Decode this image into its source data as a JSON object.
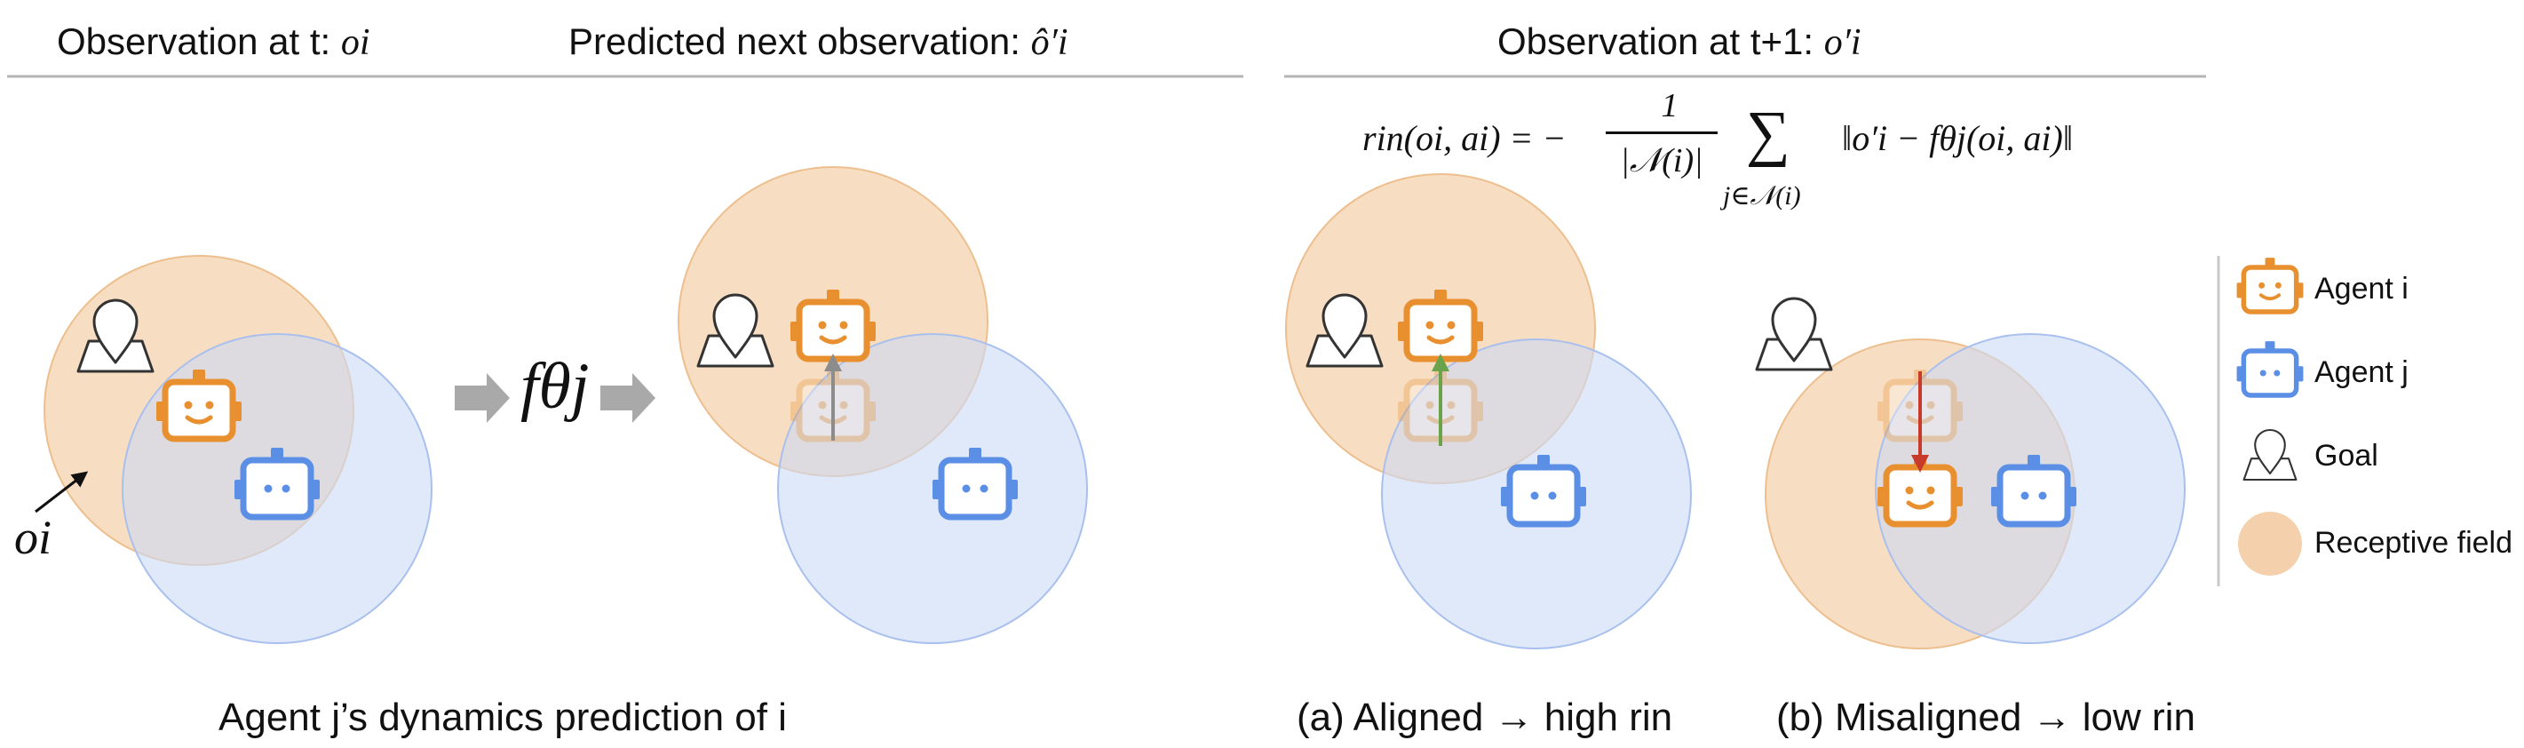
{
  "header": {
    "obs_t_label": "Observation at t:",
    "obs_t_symbol": "oi",
    "predicted_label": "Predicted next observation:",
    "predicted_symbol": "ô′i",
    "obs_t1_label": "Observation at t+1:",
    "obs_t1_symbol": "o′i"
  },
  "formula": {
    "lhs": "rin(oi, ai) = −",
    "numerator": "1",
    "denominator": "|𝒩(i)|",
    "sum_symbol": "∑",
    "sum_index": "j∈𝒩(i)",
    "rhs": "‖o′i − fθj(oi, ai)‖"
  },
  "diagram": {
    "oi_label": "oi",
    "f_label": "fθj"
  },
  "captions": {
    "left": "Agent j’s dynamics prediction of i",
    "aligned": "(a) Aligned → high rin",
    "misaligned": "(b) Misaligned → low rin"
  },
  "legend": {
    "items": [
      {
        "label": "Agent i",
        "icon": "robot-icon",
        "color": "#E8902F"
      },
      {
        "label": "Agent j",
        "icon": "robot-icon",
        "color": "#5B8FE6"
      },
      {
        "label": "Goal",
        "icon": "location-pin-icon",
        "color": "#333333"
      },
      {
        "label": "Receptive field",
        "icon": "circle-icon",
        "color": "#F4D1AC"
      }
    ]
  },
  "colors": {
    "agent_i": "#E8902F",
    "agent_j": "#5B8FE6",
    "receptive_i": "#F4D1AC",
    "receptive_j": "#CCDAF5",
    "aligned_arrow": "#6BA34A",
    "misaligned_arrow": "#C83A2A",
    "predict_arrow": "#8C8C8C"
  }
}
